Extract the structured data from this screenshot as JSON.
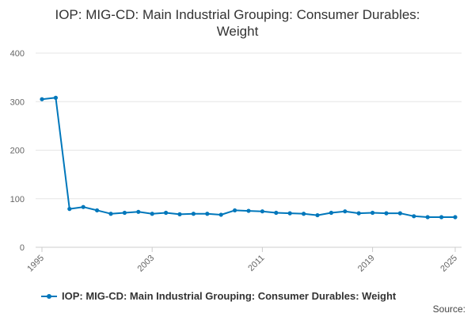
{
  "page": {
    "title_line1": "IOP: MIG-CD: Main Industrial Grouping: Consumer Durables:",
    "title_line2": "Weight",
    "source_label": "Source:"
  },
  "chart_data": {
    "type": "line",
    "title": "IOP: MIG-CD: Main Industrial Grouping: Consumer Durables: Weight",
    "xlabel": "",
    "ylabel": "",
    "xlim": [
      1995,
      2025
    ],
    "ylim": [
      0,
      400
    ],
    "x_ticks": [
      1995,
      2003,
      2011,
      2019,
      2025
    ],
    "y_ticks": [
      0,
      100,
      200,
      300,
      400
    ],
    "grid": true,
    "legend_position": "bottom",
    "series": [
      {
        "name": "IOP: MIG-CD: Main Industrial Grouping: Consumer Durables: Weight",
        "color": "#0077bb",
        "x": [
          1995,
          1996,
          1997,
          1998,
          1999,
          2000,
          2001,
          2002,
          2003,
          2004,
          2005,
          2006,
          2007,
          2008,
          2009,
          2010,
          2011,
          2012,
          2013,
          2014,
          2015,
          2016,
          2017,
          2018,
          2019,
          2020,
          2021,
          2022,
          2023,
          2024,
          2025
        ],
        "values": [
          305,
          308,
          79,
          83,
          76,
          69,
          71,
          73,
          69,
          71,
          68,
          69,
          69,
          67,
          76,
          75,
          74,
          71,
          70,
          69,
          66,
          71,
          74,
          70,
          71,
          70,
          70,
          64,
          62,
          62,
          62
        ]
      }
    ]
  }
}
